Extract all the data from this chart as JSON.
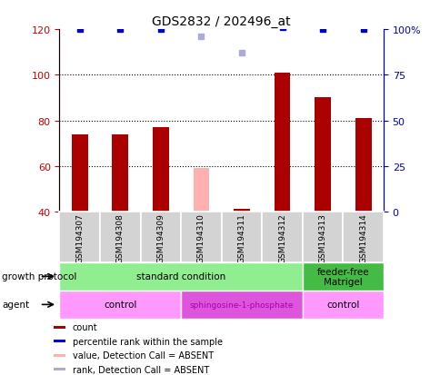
{
  "title": "GDS2832 / 202496_at",
  "samples": [
    "GSM194307",
    "GSM194308",
    "GSM194309",
    "GSM194310",
    "GSM194311",
    "GSM194312",
    "GSM194313",
    "GSM194314"
  ],
  "red_bar_values": [
    74,
    74,
    77,
    null,
    41,
    101,
    90,
    81
  ],
  "pink_bar_values": [
    null,
    null,
    null,
    59,
    null,
    null,
    null,
    null
  ],
  "blue_dot_values": [
    100,
    100,
    100,
    null,
    null,
    101,
    100,
    100
  ],
  "light_blue_dot_values": [
    null,
    null,
    null,
    96,
    87,
    null,
    null,
    null
  ],
  "ymin": 40,
  "ymax": 120,
  "y_ticks_left": [
    40,
    60,
    80,
    100,
    120
  ],
  "right_ticks": [
    0,
    25,
    50,
    75,
    100
  ],
  "right_tick_labels": [
    "0",
    "25",
    "50",
    "75",
    "100%"
  ],
  "growth_protocol_groups": [
    {
      "label": "standard condition",
      "start": 0,
      "end": 6,
      "color": "#90EE90"
    },
    {
      "label": "feeder-free\nMatrigel",
      "start": 6,
      "end": 8,
      "color": "#44BB44"
    }
  ],
  "agent_groups": [
    {
      "label": "control",
      "start": 0,
      "end": 3,
      "color": "#FF99FF"
    },
    {
      "label": "sphingosine-1-phosphate",
      "start": 3,
      "end": 6,
      "color": "#DD55DD"
    },
    {
      "label": "control",
      "start": 6,
      "end": 8,
      "color": "#FF99FF"
    }
  ],
  "bar_color_red": "#AA0000",
  "bar_color_pink": "#FFB0B0",
  "dot_color_blue": "#0000CC",
  "dot_color_light_blue": "#AAAADD",
  "left_tick_color": "#CC0000",
  "right_tick_color": "#0000BB",
  "sample_box_color": "#D3D3D3",
  "legend_items": [
    {
      "color": "#AA0000",
      "label": "count"
    },
    {
      "color": "#0000CC",
      "label": "percentile rank within the sample"
    },
    {
      "color": "#FFB0B0",
      "label": "value, Detection Call = ABSENT"
    },
    {
      "color": "#AAAADD",
      "label": "rank, Detection Call = ABSENT"
    }
  ]
}
